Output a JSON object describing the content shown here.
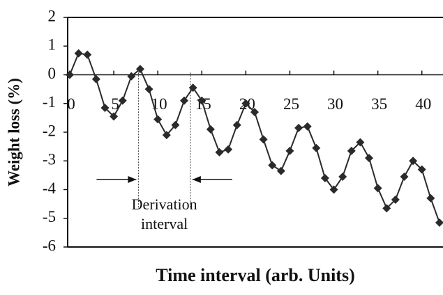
{
  "chart_data": {
    "type": "line",
    "xlabel": "Time interval (arb. Units)",
    "ylabel": "Weight loss (%)",
    "annotation": [
      "Derivation",
      "interval"
    ],
    "interval": [
      7.8,
      13.7
    ],
    "x": [
      0,
      1,
      2,
      3,
      4,
      5,
      6,
      7,
      8,
      9,
      10,
      11,
      12,
      13,
      14,
      15,
      16,
      17,
      18,
      19,
      20,
      21,
      22,
      23,
      24,
      25,
      26,
      27,
      28,
      29,
      30,
      31,
      32,
      33,
      34,
      35,
      36,
      37,
      38,
      39,
      40,
      41,
      42
    ],
    "series": [
      {
        "name": "Weight loss",
        "color": "#2a2a2a",
        "values": [
          0,
          0.75,
          0.7,
          -0.15,
          -1.15,
          -1.45,
          -0.9,
          -0.05,
          0.2,
          -0.5,
          -1.55,
          -2.1,
          -1.75,
          -0.9,
          -0.45,
          -0.9,
          -1.9,
          -2.7,
          -2.6,
          -1.75,
          -1.0,
          -1.3,
          -2.25,
          -3.15,
          -3.35,
          -2.65,
          -1.85,
          -1.8,
          -2.55,
          -3.6,
          -4.0,
          -3.55,
          -2.65,
          -2.35,
          -2.9,
          -3.95,
          -4.65,
          -4.35,
          -3.55,
          -3.0,
          -3.3,
          -4.3,
          -5.15
        ]
      }
    ],
    "xlim": [
      0,
      42.4
    ],
    "ylim": [
      -6,
      2
    ],
    "xticks": [
      0,
      5,
      10,
      15,
      20,
      25,
      30,
      35,
      40
    ],
    "yticks": [
      -6,
      -5,
      -4,
      -3,
      -2,
      -1,
      0,
      1,
      2
    ]
  }
}
